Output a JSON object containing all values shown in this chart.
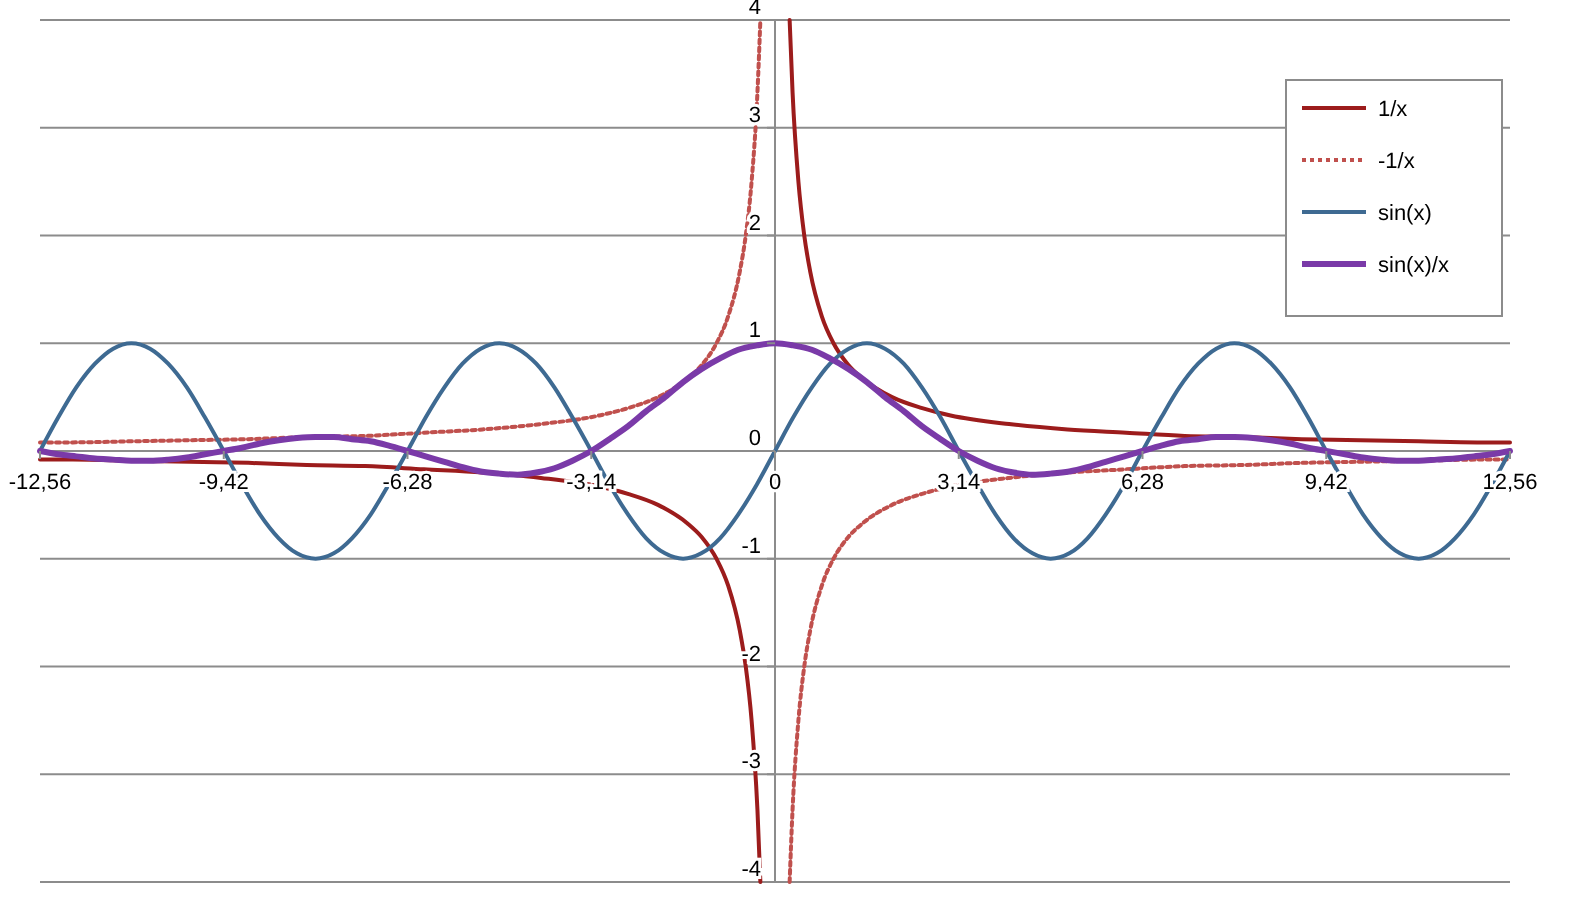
{
  "chart_data": {
    "type": "line",
    "xlim": [
      -12.56,
      12.56
    ],
    "ylim": [
      -4,
      4
    ],
    "xticks": [
      {
        "value": -12.56,
        "label": "-12,56"
      },
      {
        "value": -9.42,
        "label": "-9,42"
      },
      {
        "value": -6.28,
        "label": "-6,28"
      },
      {
        "value": -3.14,
        "label": "-3,14"
      },
      0,
      {
        "value": 3.14,
        "label": "3,14"
      },
      {
        "value": 6.28,
        "label": "6,28"
      },
      {
        "value": 9.42,
        "label": "9,42"
      },
      {
        "value": 12.56,
        "label": "12,56"
      }
    ],
    "yticks": [
      -4,
      -3,
      -2,
      -1,
      0,
      1,
      2,
      3,
      4
    ],
    "grid": "y",
    "legend": "top right",
    "marker": "none",
    "x": [
      -12.56,
      -12.25,
      -11.94,
      -11.62,
      -11.31,
      -11,
      -10.68,
      -10.37,
      -10.05,
      -9.74,
      -9.42,
      -9.11,
      -8.8,
      -8.48,
      -8.17,
      -7.85,
      -7.54,
      -7.23,
      -6.91,
      -6.6,
      -6.28,
      -5.97,
      -5.65,
      -5.34,
      -5.03,
      -4.71,
      -4.4,
      -4.08,
      -3.77,
      -3.46,
      -3.14,
      -2.83,
      -2.51,
      -2.2,
      -1.88,
      -1.57,
      -1.26,
      -0.94,
      -0.63,
      -0.31,
      0,
      0.31,
      0.63,
      0.94,
      1.26,
      1.57,
      1.88,
      2.2,
      2.51,
      2.83,
      3.14,
      3.46,
      3.77,
      4.08,
      4.4,
      4.71,
      5.03,
      5.34,
      5.65,
      5.97,
      6.28,
      6.6,
      6.91,
      7.23,
      7.54,
      7.85,
      8.17,
      8.48,
      8.8,
      9.11,
      9.42,
      9.74,
      10.05,
      10.37,
      10.68,
      11,
      11.31,
      11.62,
      11.94,
      12.25,
      12.56
    ],
    "series": [
      {
        "name": "1/x",
        "color": "#9c1c1c",
        "line_style": "solid",
        "x": [
          -12.56,
          -12,
          -11,
          -10,
          -9,
          -8,
          -7,
          -6,
          -5,
          -4,
          -3,
          -2.5,
          -2,
          -1.5,
          -1.25,
          -1,
          -0.8,
          -0.6,
          -0.5,
          -0.4,
          -0.3,
          -0.25,
          0.25,
          0.3,
          0.4,
          0.5,
          0.6,
          0.8,
          1,
          1.25,
          1.5,
          2,
          2.5,
          3,
          4,
          5,
          6,
          7,
          8,
          9,
          10,
          11,
          12,
          12.56
        ],
        "values": [
          -0.08,
          -0.08,
          -0.09,
          -0.1,
          -0.11,
          -0.13,
          -0.14,
          -0.17,
          -0.2,
          -0.25,
          -0.33,
          -0.4,
          -0.5,
          -0.67,
          -0.8,
          -1,
          -1.25,
          -1.67,
          -2,
          -2.5,
          -3.33,
          -4,
          4,
          3.33,
          2.5,
          2,
          1.67,
          1.25,
          1,
          0.8,
          0.67,
          0.5,
          0.4,
          0.33,
          0.25,
          0.2,
          0.17,
          0.14,
          0.13,
          0.11,
          0.1,
          0.09,
          0.08,
          0.08
        ]
      },
      {
        "name": "-1/x",
        "color": "#c0504d",
        "line_style": "dotted",
        "x": [
          -12.56,
          -12,
          -11,
          -10,
          -9,
          -8,
          -7,
          -6,
          -5,
          -4,
          -3,
          -2.5,
          -2,
          -1.5,
          -1.25,
          -1,
          -0.8,
          -0.6,
          -0.5,
          -0.4,
          -0.3,
          -0.25,
          0.25,
          0.3,
          0.4,
          0.5,
          0.6,
          0.8,
          1,
          1.25,
          1.5,
          2,
          2.5,
          3,
          4,
          5,
          6,
          7,
          8,
          9,
          10,
          11,
          12,
          12.56
        ],
        "values": [
          0.08,
          0.08,
          0.09,
          0.1,
          0.11,
          0.13,
          0.14,
          0.17,
          0.2,
          0.25,
          0.33,
          0.4,
          0.5,
          0.67,
          0.8,
          1,
          1.25,
          1.67,
          2,
          2.5,
          3.33,
          4,
          -4,
          -3.33,
          -2.5,
          -2,
          -1.67,
          -1.25,
          -1,
          -0.8,
          -0.67,
          -0.5,
          -0.4,
          -0.33,
          -0.25,
          -0.2,
          -0.17,
          -0.14,
          -0.13,
          -0.11,
          -0.1,
          -0.09,
          -0.08,
          -0.08
        ]
      },
      {
        "name": "sin(x)",
        "color": "#3e6a92",
        "line_style": "solid",
        "values": [
          0,
          0.31,
          0.59,
          0.81,
          0.95,
          1,
          0.95,
          0.81,
          0.59,
          0.31,
          0,
          -0.31,
          -0.59,
          -0.81,
          -0.95,
          -1,
          -0.95,
          -0.81,
          -0.59,
          -0.31,
          0,
          0.31,
          0.59,
          0.81,
          0.95,
          1,
          0.95,
          0.81,
          0.59,
          0.31,
          0,
          -0.31,
          -0.59,
          -0.81,
          -0.95,
          -1,
          -0.95,
          -0.81,
          -0.59,
          -0.31,
          0,
          0.31,
          0.59,
          0.81,
          0.95,
          1,
          0.95,
          0.81,
          0.59,
          0.31,
          0,
          -0.31,
          -0.59,
          -0.81,
          -0.95,
          -1,
          -0.95,
          -0.81,
          -0.59,
          -0.31,
          0,
          0.31,
          0.59,
          0.81,
          0.95,
          1,
          0.95,
          0.81,
          0.59,
          0.31,
          0,
          -0.31,
          -0.59,
          -0.81,
          -0.95,
          -1,
          -0.95,
          -0.81,
          -0.59,
          -0.31,
          0
        ]
      },
      {
        "name": "sin(x)/x",
        "color": "#7a3aa8",
        "line_style": "solid",
        "values": [
          0,
          -0.03,
          -0.05,
          -0.07,
          -0.08,
          -0.09,
          -0.09,
          -0.08,
          -0.06,
          -0.03,
          0,
          0.03,
          0.07,
          0.1,
          0.12,
          0.13,
          0.13,
          0.11,
          0.09,
          0.05,
          0,
          -0.05,
          -0.1,
          -0.15,
          -0.19,
          -0.21,
          -0.22,
          -0.2,
          -0.16,
          -0.09,
          0,
          0.11,
          0.23,
          0.37,
          0.5,
          0.64,
          0.76,
          0.86,
          0.94,
          0.98,
          1,
          0.98,
          0.94,
          0.86,
          0.76,
          0.64,
          0.5,
          0.37,
          0.23,
          0.11,
          0,
          -0.09,
          -0.16,
          -0.2,
          -0.22,
          -0.21,
          -0.19,
          -0.15,
          -0.1,
          -0.05,
          0,
          0.05,
          0.09,
          0.11,
          0.13,
          0.13,
          0.12,
          0.1,
          0.07,
          0.03,
          0,
          -0.03,
          -0.06,
          -0.08,
          -0.09,
          -0.09,
          -0.08,
          -0.07,
          -0.05,
          -0.03,
          0
        ]
      }
    ]
  }
}
